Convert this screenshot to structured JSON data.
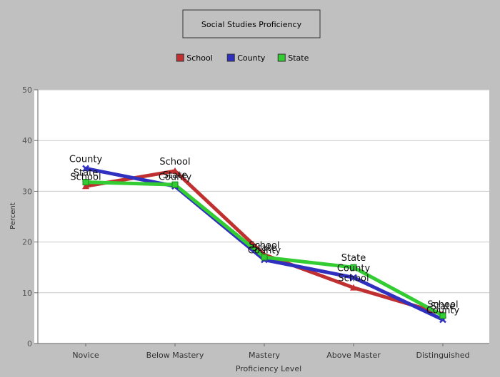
{
  "chart_data": {
    "type": "line",
    "title": "Social Studies Proficiency",
    "xlabel": "Proficiency Level",
    "ylabel": "Percent",
    "categories": [
      "Novice",
      "Below Mastery",
      "Mastery",
      "Above Master",
      "Distinguished"
    ],
    "ylim": [
      0,
      50
    ],
    "yticks": [
      0,
      10,
      20,
      30,
      40,
      50
    ],
    "grid": true,
    "legend": "top-center",
    "series": [
      {
        "name": "School",
        "color": "#c03030",
        "marker": "triangle",
        "values": [
          31,
          34,
          17.5,
          11,
          5.8
        ]
      },
      {
        "name": "County",
        "color": "#3030c0",
        "marker": "x",
        "values": [
          34.5,
          31,
          16.5,
          13,
          4.7
        ]
      },
      {
        "name": "State",
        "color": "#33cc33",
        "marker": "square",
        "values": [
          31.8,
          31.3,
          17,
          15,
          5.5
        ]
      }
    ]
  }
}
